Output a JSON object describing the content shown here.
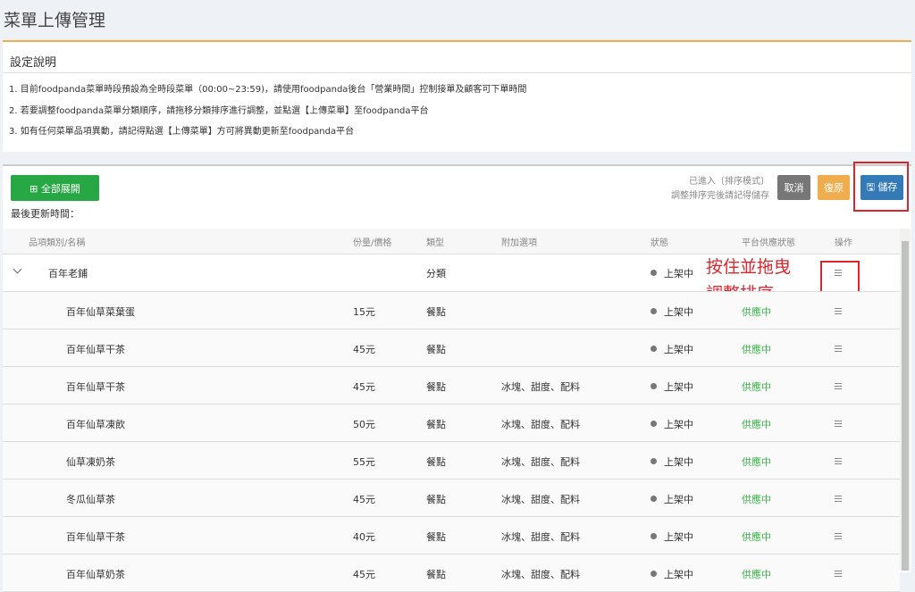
{
  "header": {
    "title": "菜單上傳管理"
  },
  "settings": {
    "title": "設定說明",
    "items": [
      "1. 目前foodpanda菜單時段預設為全時段菜單（00:00~23:59)，請使用foodpanda後台「營業時間」控制接單及顧客可下單時間",
      "2. 若要調整foodpanda菜單分類順序，請拖移分類排序進行調整，並點選【上傳菜單】至foodpanda平台",
      "3. 如有任何菜單品項異動，請記得點選【上傳菜單】方可將異動更新至foodpanda平台"
    ]
  },
  "toolbar": {
    "expand_all": "⊞ 全部展開",
    "last_updated": "最後更新時間：",
    "notice": [
      "已進入〔排序模式〕",
      "調整排序完後請記得儲存"
    ],
    "cancel": "取消",
    "restore": "復原",
    "save": "🖫 儲存"
  },
  "table": {
    "columns": [
      "品項類別/名稱",
      "份量/價格",
      "類型",
      "附加選項",
      "狀態",
      "平台供應狀態",
      "操作"
    ],
    "group": {
      "name": "百年老鋪",
      "type": "分類",
      "status": "上架中"
    },
    "rows": [
      [
        "百年仙草菜葉蛋",
        "15元",
        "餐點",
        "",
        "上架中",
        "供應中"
      ],
      [
        "百年仙草干茶",
        "45元",
        "餐點",
        "",
        "上架中",
        "供應中"
      ],
      [
        "百年仙草干茶",
        "45元",
        "餐點",
        "冰塊、甜度、配料",
        "上架中",
        "供應中"
      ],
      [
        "百年仙草凍飲",
        "50元",
        "餐點",
        "冰塊、甜度、配料",
        "上架中",
        "供應中"
      ],
      [
        "仙草凍奶茶",
        "55元",
        "餐點",
        "冰塊、甜度、配料",
        "上架中",
        "供應中"
      ],
      [
        "冬瓜仙草茶",
        "45元",
        "餐點",
        "冰塊、甜度、配料",
        "上架中",
        "供應中"
      ],
      [
        "百年仙草干茶",
        "40元",
        "餐點",
        "冰塊、甜度、配料",
        "上架中",
        "供應中"
      ],
      [
        "百年仙草奶茶",
        "45元",
        "餐點",
        "冰塊、甜度、配料",
        "上架中",
        "供應中"
      ]
    ]
  },
  "annotation": {
    "lines": [
      "按住並拖曳",
      "調整排序"
    ]
  }
}
